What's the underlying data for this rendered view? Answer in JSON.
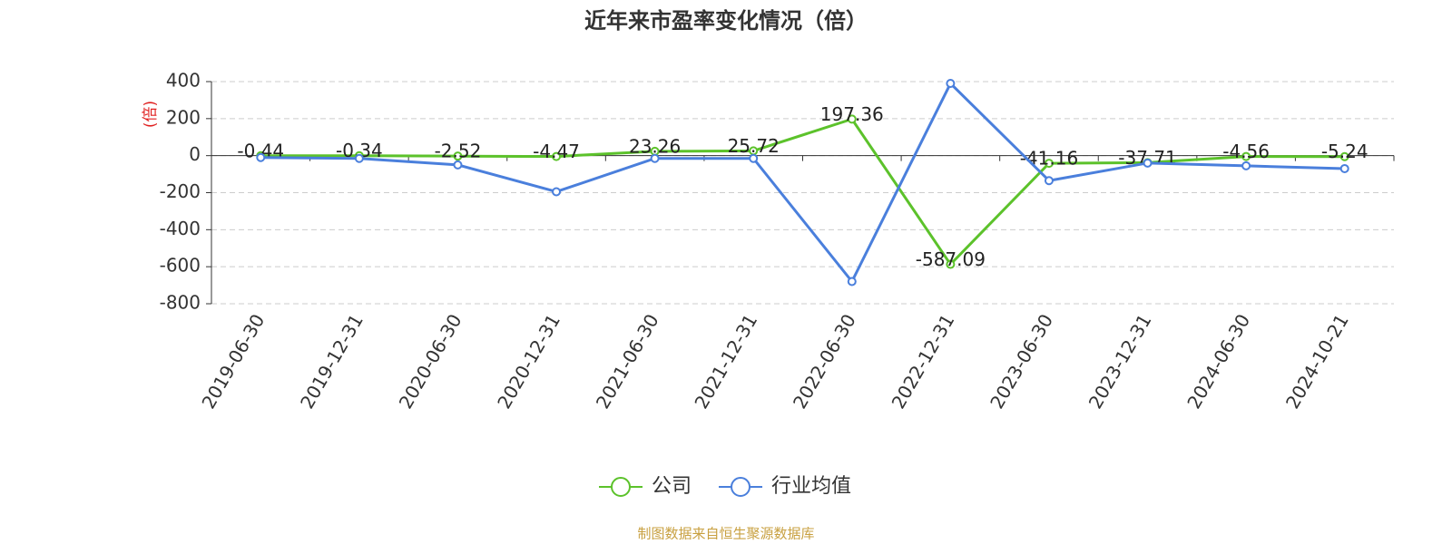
{
  "chart_data": {
    "type": "line",
    "title": "近年来市盈率变化情况（倍）",
    "y_label": "(倍)",
    "source": "制图数据来自恒生聚源数据库",
    "categories": [
      "2019-06-30",
      "2019-12-31",
      "2020-06-30",
      "2020-12-31",
      "2021-06-30",
      "2021-12-31",
      "2022-06-30",
      "2022-12-31",
      "2023-06-30",
      "2023-12-31",
      "2024-06-30",
      "2024-10-21"
    ],
    "series": [
      {
        "name": "公司",
        "color": "#5cc22b",
        "show_labels": true,
        "values": [
          -0.44,
          -0.34,
          -2.52,
          -4.47,
          23.26,
          25.72,
          197.36,
          -587.09,
          -41.16,
          -37.71,
          -4.56,
          -5.24
        ]
      },
      {
        "name": "行业均值",
        "color": "#4a7fdc",
        "show_labels": false,
        "values": [
          -10,
          -15,
          -50,
          -195,
          -15,
          -15,
          -680,
          390,
          -135,
          -40,
          -55,
          -70
        ]
      }
    ],
    "ylim": [
      -800,
      400
    ],
    "yticks": [
      400,
      200,
      0,
      -200,
      -400,
      -600,
      -800
    ],
    "grid": true
  }
}
